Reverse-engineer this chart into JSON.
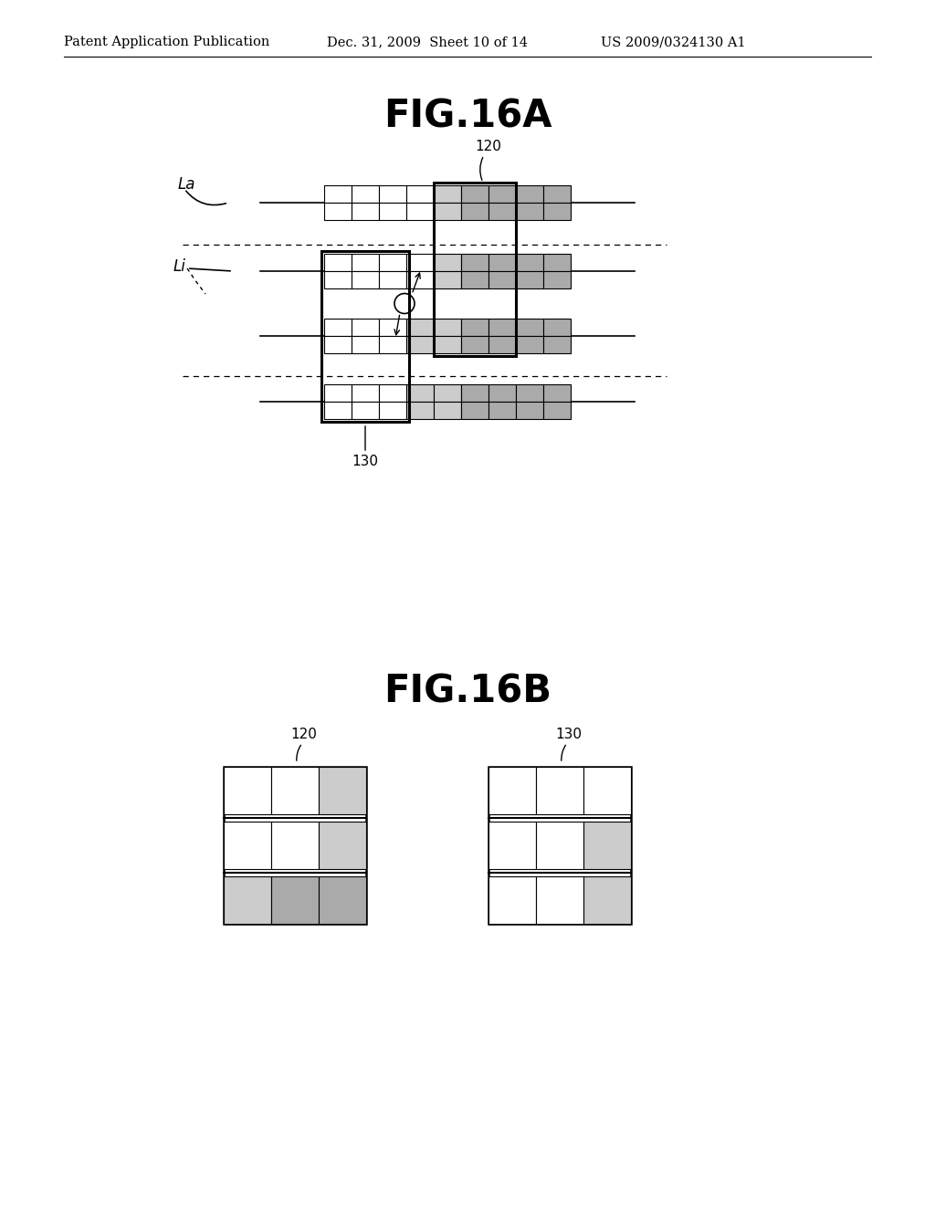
{
  "bg_color": "#ffffff",
  "header_text": "Patent Application Publication",
  "header_date": "Dec. 31, 2009  Sheet 10 of 14",
  "header_patent": "US 2009/0324130 A1",
  "fig16a_title": "FIG.16A",
  "fig16b_title": "FIG.16B",
  "label_120": "120",
  "label_130": "130",
  "label_La": "La",
  "label_Li": "Li",
  "dot_fill": "#cccccc",
  "dark_fill": "#aaaaaa",
  "white_fill": "#ffffff",
  "cell_edge": "#000000",
  "line_color": "#000000"
}
